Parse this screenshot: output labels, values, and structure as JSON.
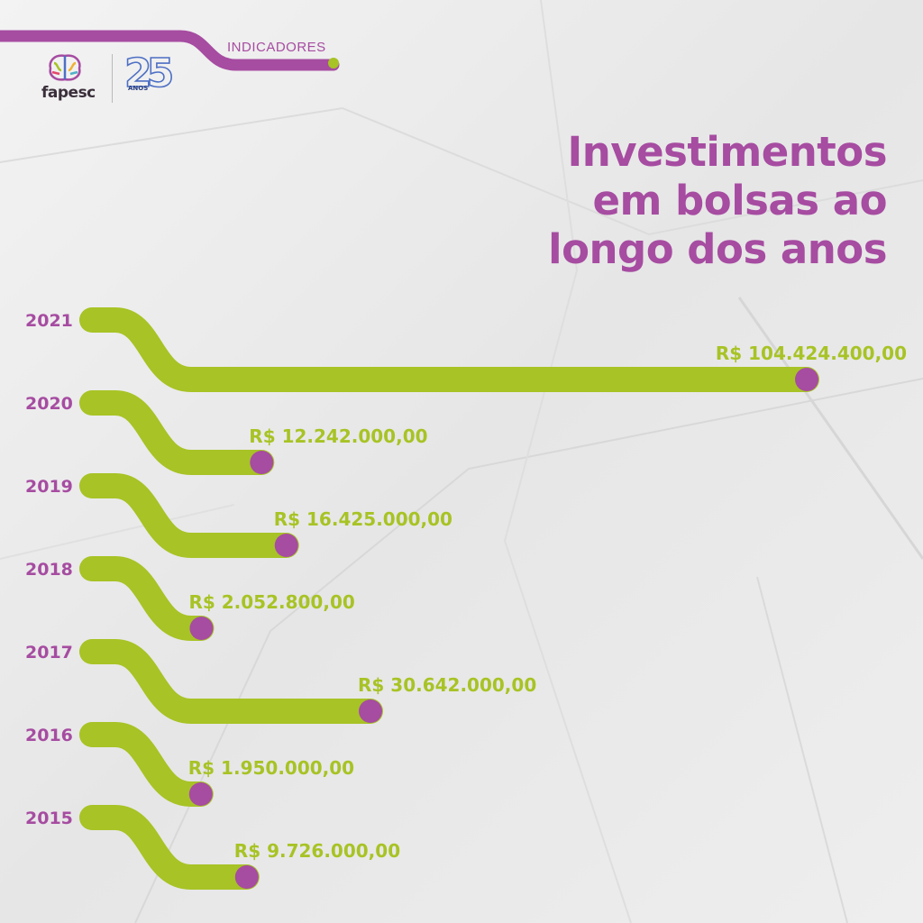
{
  "header": {
    "label": "INDICADORES"
  },
  "logo": {
    "wordmark": "fapesc",
    "anniversary_number": "25",
    "anniversary_word": "ANOS"
  },
  "title_lines": [
    "Investimentos",
    "em bolsas ao",
    "longo dos anos"
  ],
  "colors": {
    "accent_purple": "#a64ca1",
    "accent_green": "#a7c325"
  },
  "chart_data": {
    "type": "bar",
    "orientation": "horizontal",
    "title": "Investimentos em bolsas ao longo dos anos",
    "categories": [
      "2021",
      "2020",
      "2019",
      "2018",
      "2017",
      "2016",
      "2015"
    ],
    "values": [
      104424400,
      12242000,
      16425000,
      2052800,
      30642000,
      1950000,
      9726000
    ],
    "value_labels": [
      "R$ 104.424.400,00",
      "R$ 12.242.000,00",
      "R$ 16.425.000,00",
      "R$ 2.052.800,00",
      "R$ 30.642.000,00",
      "R$ 1.950.000,00",
      "R$ 9.726.000,00"
    ],
    "xlabel": "",
    "ylabel": "",
    "grid": false,
    "legend": "none"
  }
}
